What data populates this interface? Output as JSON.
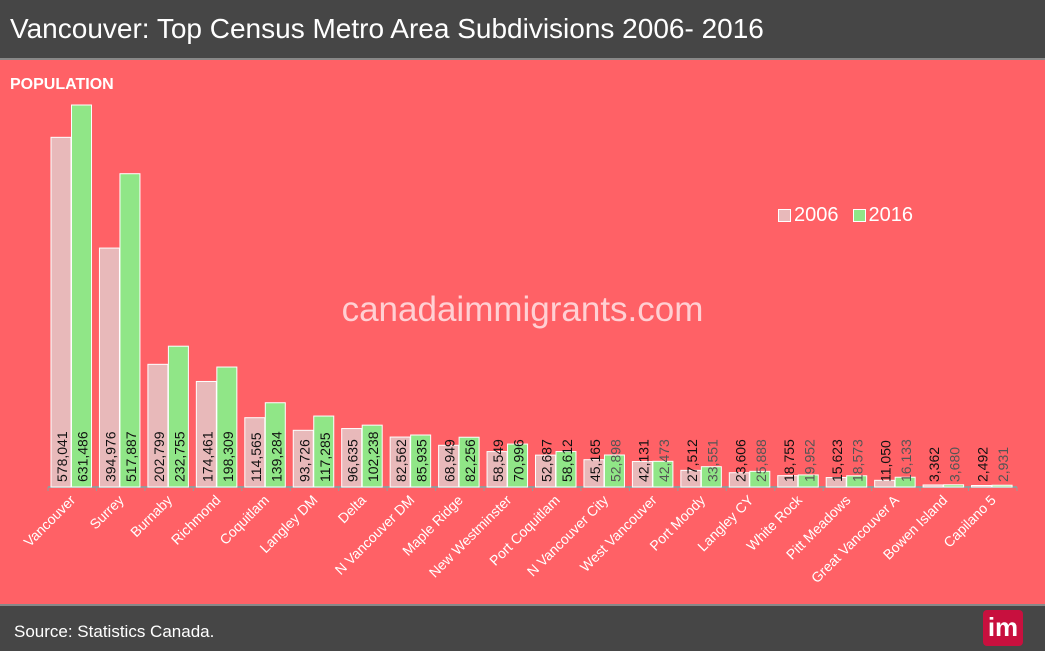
{
  "title": "Vancouver: Top Census Metro Area Subdivisions  2006- 2016",
  "source": "Source: Statistics Canada.",
  "watermark": "canadaimmigrants.com",
  "logo": "im",
  "colors": {
    "background": "#ff6166",
    "s2006": "#e8b9ba",
    "s2016": "#90e687",
    "bars_border": "#ffffff"
  },
  "chart_data": {
    "type": "bar",
    "ylabel": "POPULATION",
    "legend_position": "top-right",
    "grid": false,
    "categories": [
      "Vancouver",
      "Surrey",
      "Burnaby",
      "Richmond",
      "Coquitlam",
      "Langley DM",
      "Delta",
      "N Vancouver DM",
      "Maple Ridge",
      "New Westminster",
      "Port Coquitlam",
      "N Vancouver City",
      "West Vancouver",
      "Port Moody",
      "Langley CY",
      "White Rock",
      "Pitt Meadows",
      "Great Vancouver A",
      "Bowen Island",
      "Capilano 5"
    ],
    "series": [
      {
        "name": "2006",
        "values": [
          578041,
          394976,
          202799,
          174461,
          114565,
          93726,
          96635,
          82562,
          68949,
          58549,
          52687,
          45165,
          42131,
          27512,
          23606,
          18755,
          15623,
          11050,
          3362,
          2492
        ],
        "labels": [
          "578,041",
          "394,976",
          "202,799",
          "174,461",
          "114,565",
          "93,726",
          "96,635",
          "82,562",
          "68,949",
          "58,549",
          "52,687",
          "45,165",
          "42,131",
          "27,512",
          "23,606",
          "18,755",
          "15,623",
          "11,050",
          "3,362",
          "2,492"
        ]
      },
      {
        "name": "2016",
        "values": [
          631486,
          517887,
          232755,
          198309,
          139284,
          117285,
          102238,
          85935,
          82256,
          70996,
          58612,
          52898,
          42473,
          33551,
          25888,
          19952,
          18573,
          16133,
          3680,
          2931
        ],
        "labels": [
          "631,486",
          "517,887",
          "232,755",
          "198,309",
          "139,284",
          "117,285",
          "102,238",
          "85,935",
          "82,256",
          "70,996",
          "58,612",
          "52,898",
          "42,473",
          "33,551",
          "25,888",
          "19,952",
          "18,573",
          "16,133",
          "3,680",
          "2,931"
        ]
      }
    ]
  }
}
